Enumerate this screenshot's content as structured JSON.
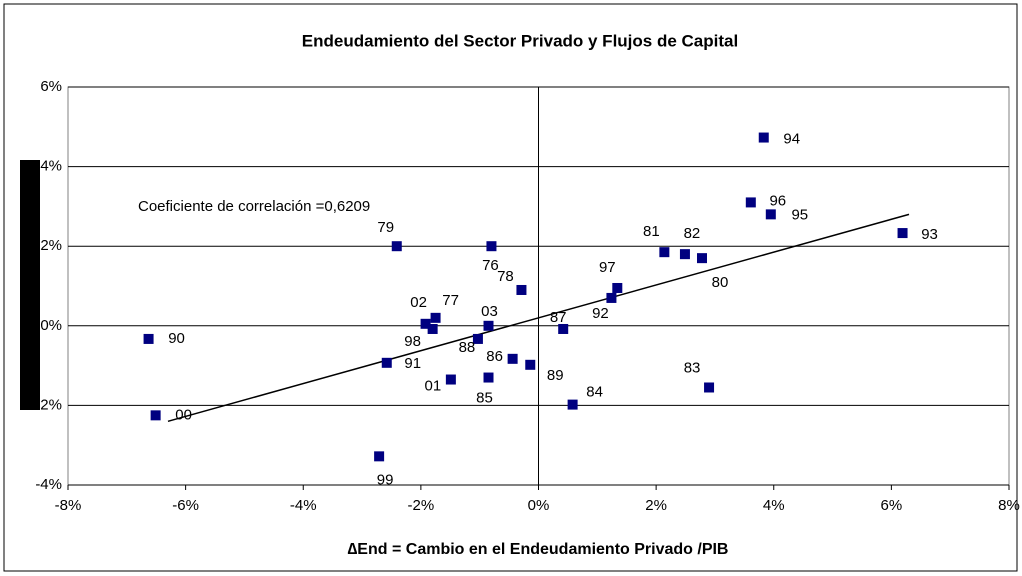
{
  "chart_data": {
    "type": "scatter",
    "title": "Endeudamiento del Sector Privado y Flujos de Capital",
    "x_label": "∆End = Cambio en el Endeudamiento Privado /PIB",
    "annotation": "Coeficiente de correlación =0,6209",
    "color": "#000080",
    "point_labels": [
      "90",
      "00",
      "99",
      "79",
      "91",
      "02",
      "98",
      "77",
      "01",
      "88",
      "03",
      "76",
      "85",
      "86",
      "78",
      "89",
      "87",
      "84",
      "92",
      "97",
      "81",
      "82",
      "80",
      "83",
      "96",
      "95",
      "94",
      "93"
    ],
    "x": [
      -6.63,
      -6.51,
      -2.71,
      -2.41,
      -2.58,
      -1.92,
      -1.8,
      -1.75,
      -1.49,
      -1.03,
      -0.85,
      -0.8,
      -0.85,
      -0.44,
      -0.29,
      -0.14,
      0.42,
      0.58,
      1.24,
      1.34,
      2.14,
      2.49,
      2.78,
      2.9,
      3.61,
      3.95,
      3.83,
      6.19
    ],
    "y": [
      -0.33,
      -2.25,
      -3.28,
      2.0,
      -0.93,
      0.05,
      -0.08,
      0.2,
      -1.35,
      -0.33,
      0.0,
      2.0,
      -1.3,
      -0.83,
      0.9,
      -0.98,
      -0.08,
      -1.98,
      0.7,
      0.95,
      1.85,
      1.8,
      1.7,
      -1.55,
      3.1,
      2.8,
      4.73,
      2.33
    ],
    "trendline": {
      "x": [
        -6.3,
        6.3
      ],
      "y": [
        -2.4,
        2.8
      ]
    },
    "xlim": [
      -8,
      8
    ],
    "ylim": [
      -4,
      6
    ],
    "xticks": [
      {
        "value": -8,
        "label": "-8%"
      },
      {
        "value": -6,
        "label": "-6%"
      },
      {
        "value": -4,
        "label": "-4%"
      },
      {
        "value": -2,
        "label": "-2%"
      },
      {
        "value": 0,
        "label": "0%"
      },
      {
        "value": 2,
        "label": "2%"
      },
      {
        "value": 4,
        "label": "4%"
      },
      {
        "value": 6,
        "label": "6%"
      },
      {
        "value": 8,
        "label": "8%"
      }
    ],
    "yticks": [
      {
        "value": -4,
        "label": "-4%"
      },
      {
        "value": -2,
        "label": "-2%"
      },
      {
        "value": 0,
        "label": "0%"
      },
      {
        "value": 2,
        "label": "2%"
      },
      {
        "value": 4,
        "label": "4%"
      },
      {
        "value": 6,
        "label": "6%"
      }
    ],
    "grid": true
  }
}
